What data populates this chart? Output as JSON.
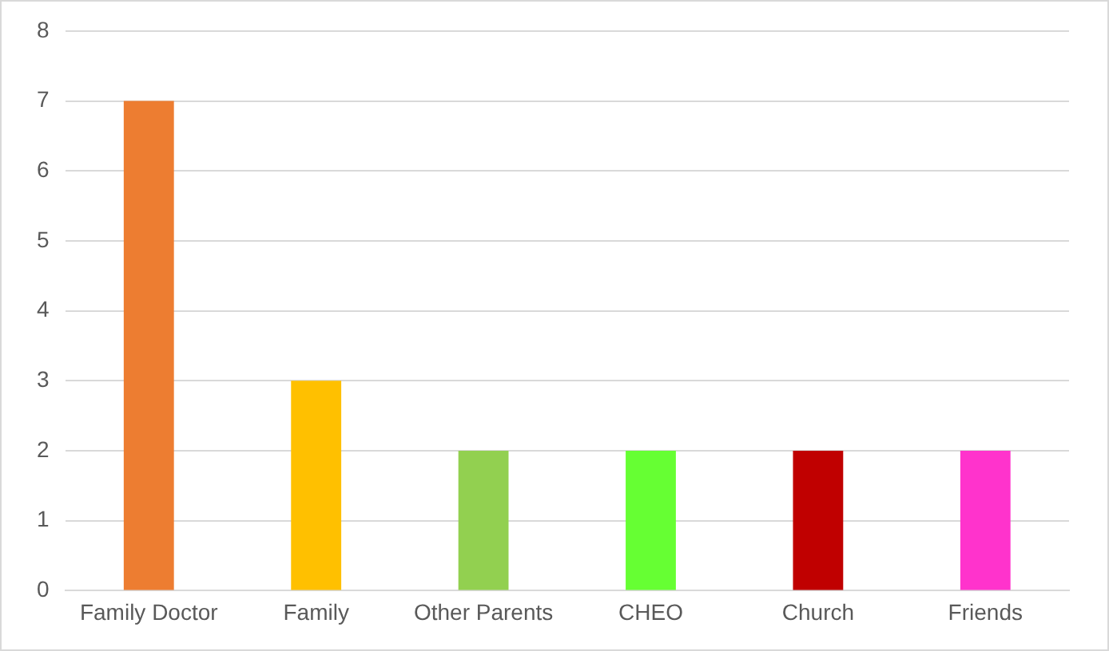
{
  "chart_data": {
    "type": "bar",
    "categories": [
      "Family Doctor",
      "Family",
      "Other Parents",
      "CHEO",
      "Church",
      "Friends"
    ],
    "values": [
      7,
      3,
      2,
      2,
      2,
      2
    ],
    "colors": [
      "#ed7d31",
      "#ffc000",
      "#92d050",
      "#66ff33",
      "#c00000",
      "#ff33cc"
    ],
    "ylim": [
      0,
      8
    ],
    "yticks": [
      0,
      1,
      2,
      3,
      4,
      5,
      6,
      7,
      8
    ],
    "grid": "y"
  }
}
